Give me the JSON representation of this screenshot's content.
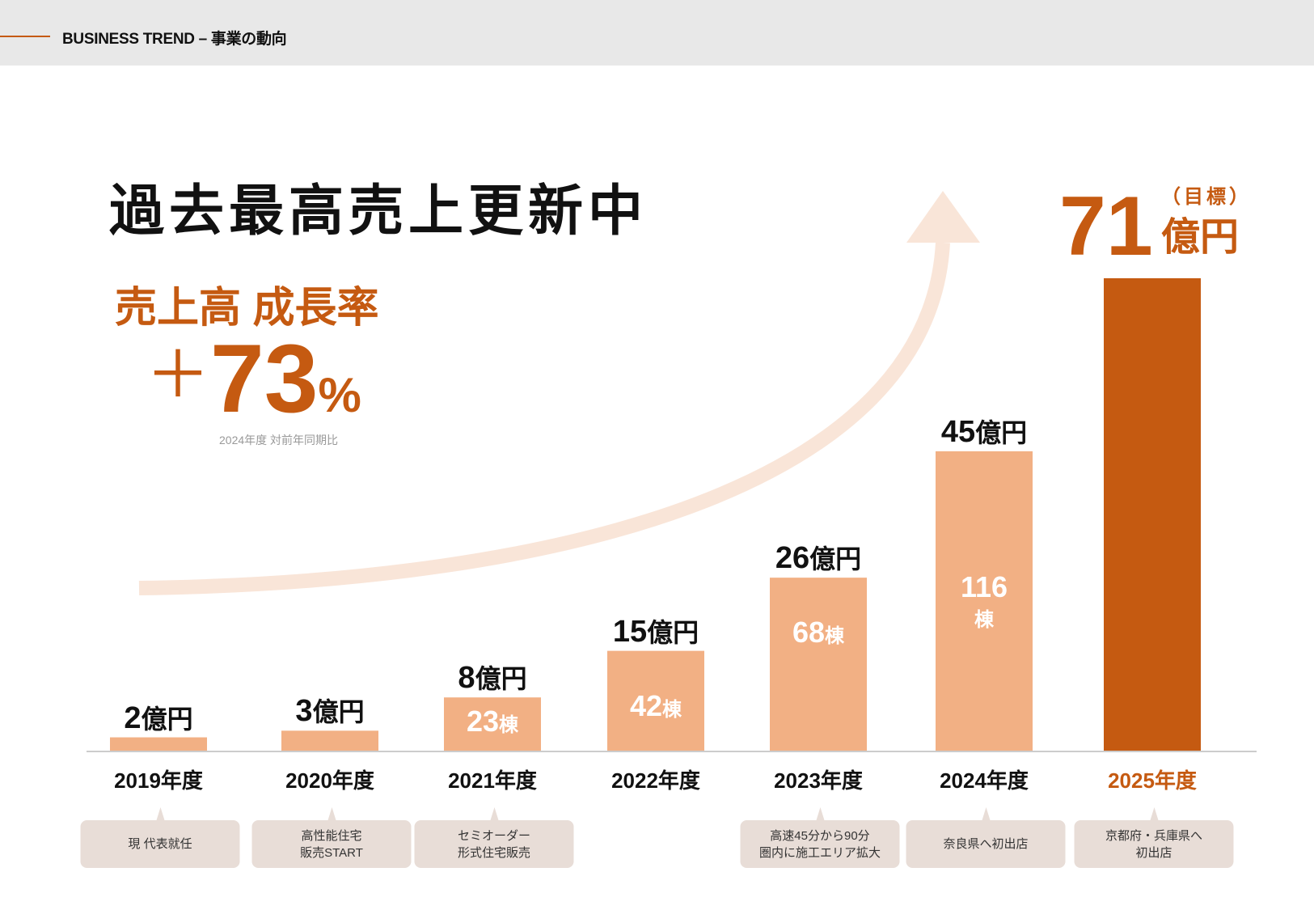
{
  "header": {
    "title": "BUSINESS TREND – 事業の動向"
  },
  "headline": "過去最高売上更新中",
  "growth": {
    "label": "売上高 成長率",
    "plus": "＋",
    "value": "73",
    "unit": "%",
    "caption": "2024年度 対前年同期比"
  },
  "target": {
    "value": "71",
    "tag": "（目標）",
    "unit": "億円"
  },
  "colors": {
    "accent": "#c55a11",
    "bar": "#f2b084",
    "arrow": "#f9e5d8",
    "note": "#e8ddd7"
  },
  "chart_data": {
    "type": "bar",
    "categories": [
      "2019年度",
      "2020年度",
      "2021年度",
      "2022年度",
      "2023年度",
      "2024年度",
      "2025年度"
    ],
    "values": [
      2,
      3,
      8,
      15,
      26,
      45,
      71
    ],
    "value_labels": [
      "2",
      "3",
      "8",
      "15",
      "26",
      "45",
      ""
    ],
    "value_unit": "億円",
    "units_built": [
      null,
      null,
      "23",
      "42",
      "68",
      "116",
      null
    ],
    "units_unit": "棟",
    "highlight": "2025年度",
    "notes": [
      "現 代表就任",
      "高性能住宅\n販売START",
      "セミオーダー\n形式住宅販売",
      "",
      "高速45分から90分\n圏内に施工エリア拡大",
      "奈良県へ初出店",
      "京都府・兵庫県へ\n初出店"
    ]
  }
}
